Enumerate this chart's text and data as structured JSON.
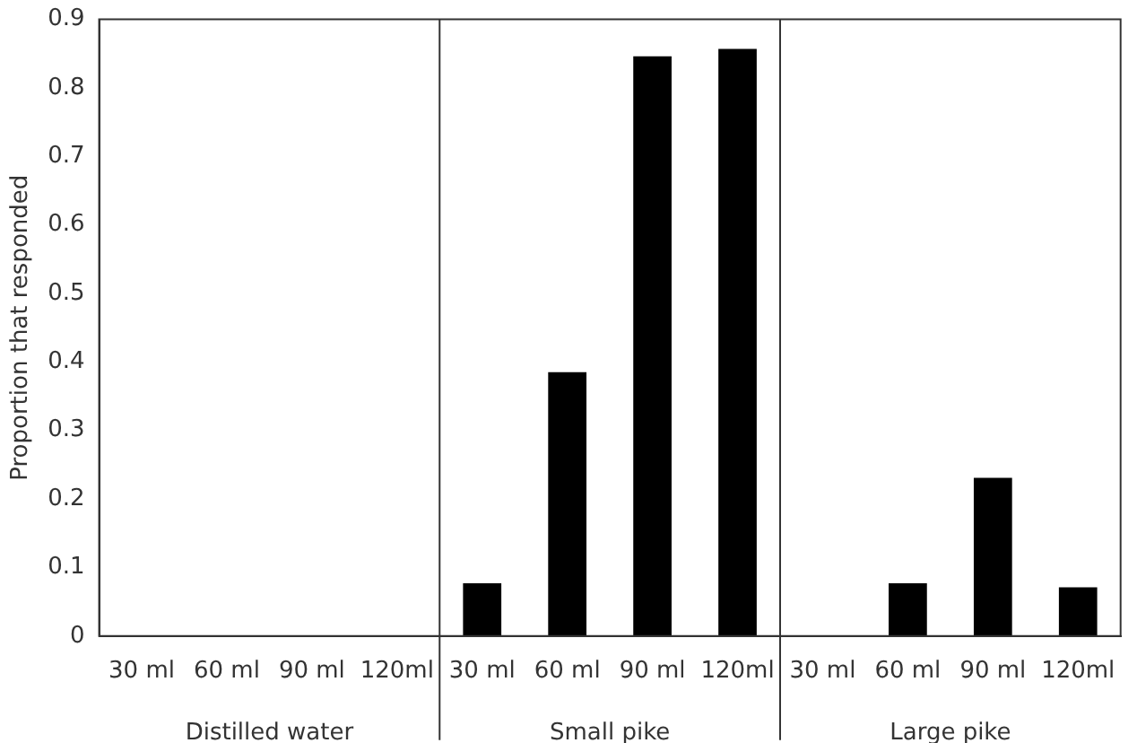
{
  "chart_data": {
    "type": "bar",
    "ylabel": "Proportion that responded",
    "categories": [
      "30 ml",
      "60 ml",
      "90 ml",
      "120ml",
      "30 ml",
      "60 ml",
      "90 ml",
      "120ml",
      "30 ml",
      "60 ml",
      "90 ml",
      "120ml"
    ],
    "values": [
      0,
      0,
      0,
      0,
      0.077,
      0.385,
      0.846,
      0.857,
      0,
      0.077,
      0.231,
      0.071
    ],
    "color": "#000000",
    "ylim": [
      0,
      0.9
    ],
    "yticks": [
      0,
      0.1,
      0.2,
      0.3,
      0.4,
      0.5,
      0.6,
      0.7,
      0.8,
      0.9
    ],
    "grid": false,
    "legend": false,
    "annotations": [
      "Distilled water",
      "Small pike",
      "Large pike"
    ]
  }
}
